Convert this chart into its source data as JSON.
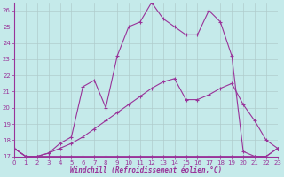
{
  "xlabel": "Windchill (Refroidissement éolien,°C)",
  "bg_color": "#c5eaea",
  "line_color": "#993399",
  "grid_color": "#b0cccc",
  "xlim": [
    0,
    23
  ],
  "ylim": [
    17,
    26.5
  ],
  "yticks": [
    17,
    18,
    19,
    20,
    21,
    22,
    23,
    24,
    25,
    26
  ],
  "xticks": [
    0,
    1,
    2,
    3,
    4,
    5,
    6,
    7,
    8,
    9,
    10,
    11,
    12,
    13,
    14,
    15,
    16,
    17,
    18,
    19,
    20,
    21,
    22,
    23
  ],
  "series": [
    {
      "x": [
        0,
        1,
        2,
        3,
        4,
        5,
        6,
        7,
        8,
        9,
        10,
        11,
        12,
        13,
        14,
        15,
        16,
        17,
        18,
        19,
        20,
        21,
        22,
        23
      ],
      "y": [
        17.5,
        17.0,
        17.0,
        17.0,
        17.0,
        17.0,
        17.0,
        17.0,
        17.0,
        17.0,
        17.0,
        17.0,
        17.0,
        17.0,
        17.0,
        17.0,
        17.0,
        17.0,
        17.0,
        17.0,
        17.0,
        17.0,
        17.0,
        17.5
      ]
    },
    {
      "x": [
        0,
        1,
        2,
        3,
        4,
        5,
        6,
        7,
        8,
        9,
        10,
        11,
        12,
        13,
        14,
        15,
        16,
        17,
        18,
        19,
        20,
        21,
        22,
        23
      ],
      "y": [
        17.5,
        17.0,
        17.0,
        17.2,
        17.5,
        17.8,
        18.2,
        18.7,
        19.2,
        19.7,
        20.2,
        20.7,
        21.2,
        21.6,
        21.8,
        20.5,
        20.5,
        20.8,
        21.2,
        21.5,
        20.2,
        19.2,
        18.0,
        17.5
      ]
    },
    {
      "x": [
        0,
        1,
        2,
        3,
        4,
        5,
        6,
        7,
        8,
        9,
        10,
        11,
        12,
        13,
        14,
        15,
        16,
        17,
        18,
        19,
        20,
        21,
        22,
        23
      ],
      "y": [
        17.5,
        17.0,
        17.0,
        17.2,
        17.8,
        18.2,
        21.3,
        21.7,
        20.0,
        23.2,
        25.0,
        25.3,
        26.5,
        25.5,
        25.0,
        24.5,
        24.5,
        26.0,
        25.3,
        23.2,
        17.3,
        17.0,
        17.0,
        17.5
      ]
    }
  ]
}
